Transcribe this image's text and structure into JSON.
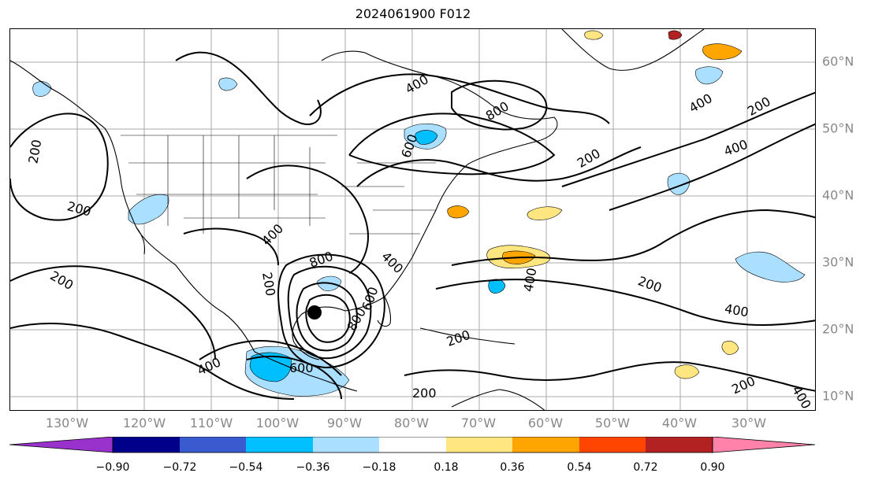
{
  "title": "2024061900 F012",
  "lon_labels": [
    "130°W",
    "120°W",
    "110°W",
    "100°W",
    "90°W",
    "80°W",
    "70°W",
    "60°W",
    "50°W",
    "40°W",
    "30°W"
  ],
  "lat_labels": [
    "60°N",
    "50°N",
    "40°N",
    "30°N",
    "20°N",
    "10°N"
  ],
  "contour_labels": [
    "200",
    "200",
    "200",
    "200",
    "200",
    "200",
    "200",
    "200",
    "200",
    "200",
    "400",
    "400",
    "400",
    "400",
    "400",
    "400",
    "400",
    "400",
    "600",
    "600",
    "600",
    "800",
    "800",
    "800",
    "400"
  ],
  "colorbar": {
    "ticks": [
      "−0.90",
      "−0.72",
      "−0.54",
      "−0.36",
      "−0.18",
      "0.18",
      "0.36",
      "0.54",
      "0.72",
      "0.90"
    ],
    "colors": [
      "#9932cc",
      "#00008b",
      "#3a5bd0",
      "#00bfff",
      "#aadfff",
      "#ffffff",
      "#ffe680",
      "#ffa500",
      "#ff4500",
      "#b22222",
      "#ff82ab"
    ]
  }
}
